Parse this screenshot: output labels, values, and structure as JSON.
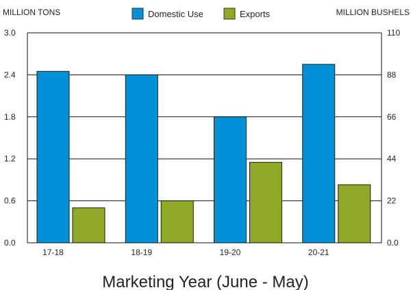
{
  "chart_data": {
    "type": "bar",
    "title": "",
    "xlabel": "Marketing Year (June - May)",
    "ylabel": "MILLION TONS",
    "ylabel_right": "MILLION BUSHELS",
    "categories": [
      "17-18",
      "18-19",
      "19-20",
      "20-21"
    ],
    "series": [
      {
        "name": "Domestic Use",
        "values": [
          2.45,
          2.4,
          1.8,
          2.55
        ],
        "color": "#0090d8"
      },
      {
        "name": "Exports",
        "values": [
          0.5,
          0.6,
          1.15,
          0.83
        ],
        "color": "#8fa826"
      }
    ],
    "ylim": [
      0,
      3.0
    ],
    "yticks": [
      "0.0",
      "0.6",
      "1.2",
      "1.8",
      "2.4",
      "3.0"
    ],
    "ylim_right": [
      0,
      110
    ],
    "yticks_right": [
      "0.0",
      "22",
      "44",
      "66",
      "88",
      "110"
    ],
    "grid": true,
    "legend_position": "top-center"
  }
}
